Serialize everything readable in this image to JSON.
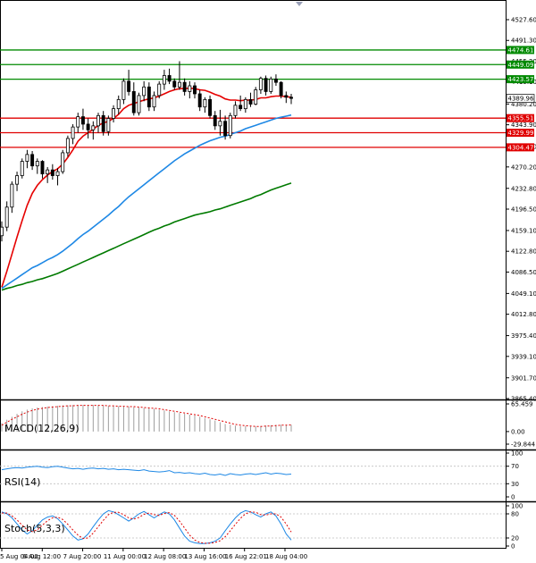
{
  "chart_data": [
    {
      "type": "candlestick",
      "title": "",
      "ylim": [
        3865.4,
        4545.6
      ],
      "y_ticks": [
        "4527.60",
        "4491.30",
        "4455.20",
        "4419.10",
        "4380.20",
        "4343.90",
        "4306.10",
        "4270.20",
        "4232.80",
        "4196.50",
        "4159.10",
        "4122.80",
        "4086.50",
        "4049.10",
        "4012.80",
        "3975.40",
        "3939.10",
        "3901.70",
        "3865.40"
      ],
      "x_ticks": [
        "5 Aug 04:00",
        "6 Aug 12:00",
        "7 Aug 20:00",
        "11 Aug 00:00",
        "12 Aug 08:00",
        "13 Aug 16:00",
        "16 Aug 22:01",
        "18 Aug 04:00"
      ],
      "current_price": "4389.96",
      "green_levels": [
        "4474.61",
        "4449.09",
        "4423.57"
      ],
      "red_levels": [
        "4355.51",
        "4329.99",
        "4304.47"
      ],
      "candles": [
        [
          4150,
          4175,
          4140,
          4165
        ],
        [
          4165,
          4210,
          4158,
          4200
        ],
        [
          4200,
          4245,
          4190,
          4240
        ],
        [
          4240,
          4262,
          4228,
          4255
        ],
        [
          4255,
          4285,
          4250,
          4280
        ],
        [
          4280,
          4300,
          4268,
          4292
        ],
        [
          4292,
          4298,
          4265,
          4272
        ],
        [
          4272,
          4285,
          4258,
          4280
        ],
        [
          4280,
          4282,
          4250,
          4258
        ],
        [
          4258,
          4270,
          4242,
          4265
        ],
        [
          4265,
          4275,
          4248,
          4255
        ],
        [
          4255,
          4268,
          4238,
          4262
        ],
        [
          4262,
          4300,
          4258,
          4295
        ],
        [
          4295,
          4325,
          4288,
          4320
        ],
        [
          4320,
          4345,
          4310,
          4340
        ],
        [
          4340,
          4365,
          4330,
          4358
        ],
        [
          4358,
          4372,
          4335,
          4345
        ],
        [
          4345,
          4355,
          4320,
          4335
        ],
        [
          4335,
          4350,
          4318,
          4342
        ],
        [
          4342,
          4365,
          4330,
          4360
        ],
        [
          4360,
          4368,
          4325,
          4332
        ],
        [
          4332,
          4360,
          4325,
          4355
        ],
        [
          4355,
          4378,
          4348,
          4372
        ],
        [
          4372,
          4395,
          4362,
          4388
        ],
        [
          4388,
          4425,
          4380,
          4420
        ],
        [
          4420,
          4440,
          4395,
          4402
        ],
        [
          4402,
          4418,
          4360,
          4365
        ],
        [
          4365,
          4400,
          4360,
          4395
        ],
        [
          4395,
          4420,
          4385,
          4410
        ],
        [
          4410,
          4418,
          4368,
          4375
        ],
        [
          4375,
          4402,
          4368,
          4395
        ],
        [
          4395,
          4420,
          4390,
          4415
        ],
        [
          4415,
          4440,
          4405,
          4430
        ],
        [
          4430,
          4442,
          4415,
          4420
        ],
        [
          4420,
          4425,
          4405,
          4410
        ],
        [
          4410,
          4455,
          4405,
          4418
        ],
        [
          4418,
          4425,
          4395,
          4402
        ],
        [
          4402,
          4420,
          4390,
          4412
        ],
        [
          4412,
          4418,
          4390,
          4398
        ],
        [
          4398,
          4405,
          4368,
          4375
        ],
        [
          4375,
          4392,
          4365,
          4388
        ],
        [
          4388,
          4395,
          4355,
          4360
        ],
        [
          4360,
          4368,
          4335,
          4342
        ],
        [
          4342,
          4370,
          4325,
          4350
        ],
        [
          4350,
          4360,
          4318,
          4325
        ],
        [
          4325,
          4365,
          4320,
          4360
        ],
        [
          4360,
          4385,
          4355,
          4378
        ],
        [
          4378,
          4395,
          4368,
          4372
        ],
        [
          4372,
          4392,
          4365,
          4388
        ],
        [
          4388,
          4400,
          4375,
          4380
        ],
        [
          4380,
          4410,
          4378,
          4405
        ],
        [
          4405,
          4428,
          4398,
          4425
        ],
        [
          4425,
          4430,
          4395,
          4402
        ],
        [
          4402,
          4428,
          4398,
          4424
        ],
        [
          4424,
          4432,
          4412,
          4418
        ],
        [
          4418,
          4420,
          4390,
          4395
        ],
        [
          4395,
          4402,
          4382,
          4392
        ],
        [
          4392,
          4398,
          4380,
          4390
        ]
      ],
      "series": [
        {
          "color": "#e60000",
          "values": [
            4060,
            4088,
            4118,
            4148,
            4176,
            4203,
            4224,
            4238,
            4248,
            4256,
            4262,
            4267,
            4275,
            4287,
            4300,
            4315,
            4324,
            4330,
            4336,
            4343,
            4347,
            4350,
            4355,
            4362,
            4372,
            4378,
            4381,
            4384,
            4387,
            4389,
            4391,
            4394,
            4398,
            4402,
            4405,
            4407,
            4407,
            4408,
            4407,
            4405,
            4404,
            4401,
            4397,
            4394,
            4389,
            4387,
            4387,
            4386,
            4387,
            4387,
            4388,
            4391,
            4391,
            4393,
            4394,
            4394,
            4393,
            4392
          ]
        },
        {
          "color": "#1e88e5",
          "values": [
            4058,
            4064,
            4070,
            4076,
            4082,
            4088,
            4094,
            4098,
            4103,
            4108,
            4112,
            4117,
            4123,
            4130,
            4137,
            4145,
            4152,
            4158,
            4165,
            4172,
            4179,
            4186,
            4194,
            4201,
            4210,
            4218,
            4225,
            4232,
            4239,
            4246,
            4253,
            4260,
            4267,
            4274,
            4281,
            4287,
            4293,
            4298,
            4303,
            4308,
            4312,
            4316,
            4319,
            4322,
            4324,
            4327,
            4330,
            4333,
            4337,
            4340,
            4343,
            4346,
            4349,
            4352,
            4355,
            4357,
            4359,
            4361
          ]
        },
        {
          "color": "#007a00",
          "values": [
            4055,
            4058,
            4060,
            4063,
            4065,
            4068,
            4070,
            4073,
            4075,
            4078,
            4081,
            4084,
            4088,
            4092,
            4096,
            4100,
            4104,
            4108,
            4112,
            4116,
            4120,
            4124,
            4128,
            4132,
            4136,
            4140,
            4144,
            4148,
            4152,
            4156,
            4160,
            4163,
            4167,
            4170,
            4174,
            4177,
            4180,
            4183,
            4186,
            4188,
            4190,
            4192,
            4195,
            4197,
            4200,
            4203,
            4206,
            4209,
            4212,
            4215,
            4219,
            4222,
            4226,
            4230,
            4233,
            4236,
            4239,
            4242
          ]
        }
      ]
    },
    {
      "type": "bar",
      "title": "MACD(12,26,9)",
      "ylim": [
        -29.844,
        65.459
      ],
      "y_ticks": [
        "65.459",
        "0.00",
        "-29.844"
      ],
      "values": [
        20,
        28,
        35,
        42,
        48,
        52,
        55,
        57,
        58,
        59,
        60,
        61,
        62,
        62,
        63,
        63,
        63,
        63,
        63,
        62,
        62,
        61,
        61,
        60,
        60,
        59,
        58,
        57,
        56,
        55,
        54,
        52,
        50,
        48,
        46,
        44,
        42,
        40,
        38,
        35,
        32,
        29,
        26,
        22,
        18,
        16,
        14,
        13,
        13,
        12,
        12,
        13,
        14,
        15,
        16,
        16,
        16,
        16
      ],
      "signal": [
        15,
        22,
        29,
        35,
        41,
        46,
        50,
        53,
        55,
        57,
        58,
        59,
        60,
        61,
        61,
        62,
        62,
        62,
        62,
        62,
        62,
        61,
        61,
        60,
        60,
        59,
        59,
        58,
        57,
        56,
        55,
        54,
        52,
        50,
        48,
        46,
        44,
        42,
        40,
        38,
        35,
        32,
        29,
        26,
        23,
        20,
        17,
        15,
        14,
        13,
        12,
        12,
        13,
        13,
        14,
        15,
        15,
        16
      ]
    },
    {
      "type": "line",
      "title": "RSI(14)",
      "ylim": [
        0,
        100
      ],
      "y_ticks": [
        "100",
        "70",
        "30",
        "0"
      ],
      "values": [
        62,
        64,
        66,
        67,
        66,
        68,
        69,
        70,
        68,
        67,
        69,
        70,
        68,
        66,
        64,
        65,
        63,
        65,
        66,
        64,
        65,
        63,
        64,
        62,
        63,
        62,
        61,
        60,
        62,
        59,
        58,
        57,
        58,
        60,
        55,
        56,
        54,
        55,
        53,
        52,
        54,
        51,
        50,
        52,
        49,
        53,
        51,
        50,
        52,
        53,
        51,
        53,
        55,
        52,
        54,
        53,
        51,
        52
      ]
    },
    {
      "type": "line",
      "title": "Stoch(5,3,3)",
      "ylim": [
        0,
        100
      ],
      "y_ticks": [
        "100",
        "80",
        "20",
        "0"
      ],
      "values": [
        85,
        80,
        70,
        55,
        40,
        30,
        38,
        52,
        65,
        72,
        75,
        68,
        55,
        40,
        25,
        15,
        18,
        30,
        48,
        65,
        80,
        88,
        85,
        78,
        70,
        62,
        70,
        80,
        86,
        78,
        70,
        78,
        85,
        80,
        65,
        45,
        25,
        12,
        8,
        6,
        6,
        8,
        12,
        20,
        38,
        55,
        70,
        82,
        88,
        85,
        78,
        72,
        80,
        85,
        75,
        55,
        30,
        15
      ],
      "signal": [
        82,
        82,
        75,
        65,
        52,
        40,
        36,
        40,
        52,
        63,
        70,
        72,
        66,
        54,
        40,
        27,
        19,
        20,
        32,
        48,
        64,
        78,
        84,
        84,
        78,
        70,
        67,
        71,
        79,
        82,
        78,
        76,
        81,
        83,
        76,
        62,
        45,
        27,
        15,
        9,
        7,
        7,
        9,
        13,
        23,
        38,
        54,
        69,
        80,
        85,
        84,
        78,
        77,
        80,
        80,
        72,
        55,
        35
      ]
    }
  ]
}
